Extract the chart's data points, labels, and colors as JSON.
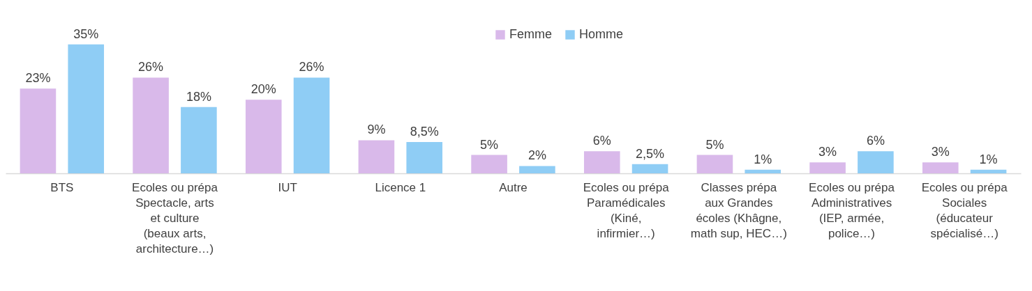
{
  "chart_data": {
    "type": "bar",
    "categories": [
      "BTS",
      "Ecoles ou prépa Spectacle, arts et culture (beaux arts, architecture…)",
      "IUT",
      "Licence 1",
      "Autre",
      "Ecoles ou prépa Paramédicales (Kiné, infirmier…)",
      "Classes prépa aux Grandes écoles (Khâgne, math sup, HEC…)",
      "Ecoles ou prépa Administratives (IEP, armée, police…)",
      "Ecoles ou prépa Sociales (éducateur spécialisé…)"
    ],
    "series": [
      {
        "name": "Femme",
        "color": "#d9b9ea",
        "values": [
          23,
          26,
          20,
          9,
          5,
          6,
          5,
          3,
          3
        ],
        "value_labels": [
          "23%",
          "26%",
          "20%",
          "9%",
          "5%",
          "6%",
          "5%",
          "3%",
          "3%"
        ]
      },
      {
        "name": "Homme",
        "color": "#8fcdf5",
        "values": [
          35,
          18,
          26,
          8.5,
          2,
          2.5,
          1,
          6,
          1
        ],
        "value_labels": [
          "35%",
          "18%",
          "26%",
          "8,5%",
          "2%",
          "2,5%",
          "1%",
          "6%",
          "1%"
        ]
      }
    ],
    "legend": "top",
    "grid": false
  }
}
